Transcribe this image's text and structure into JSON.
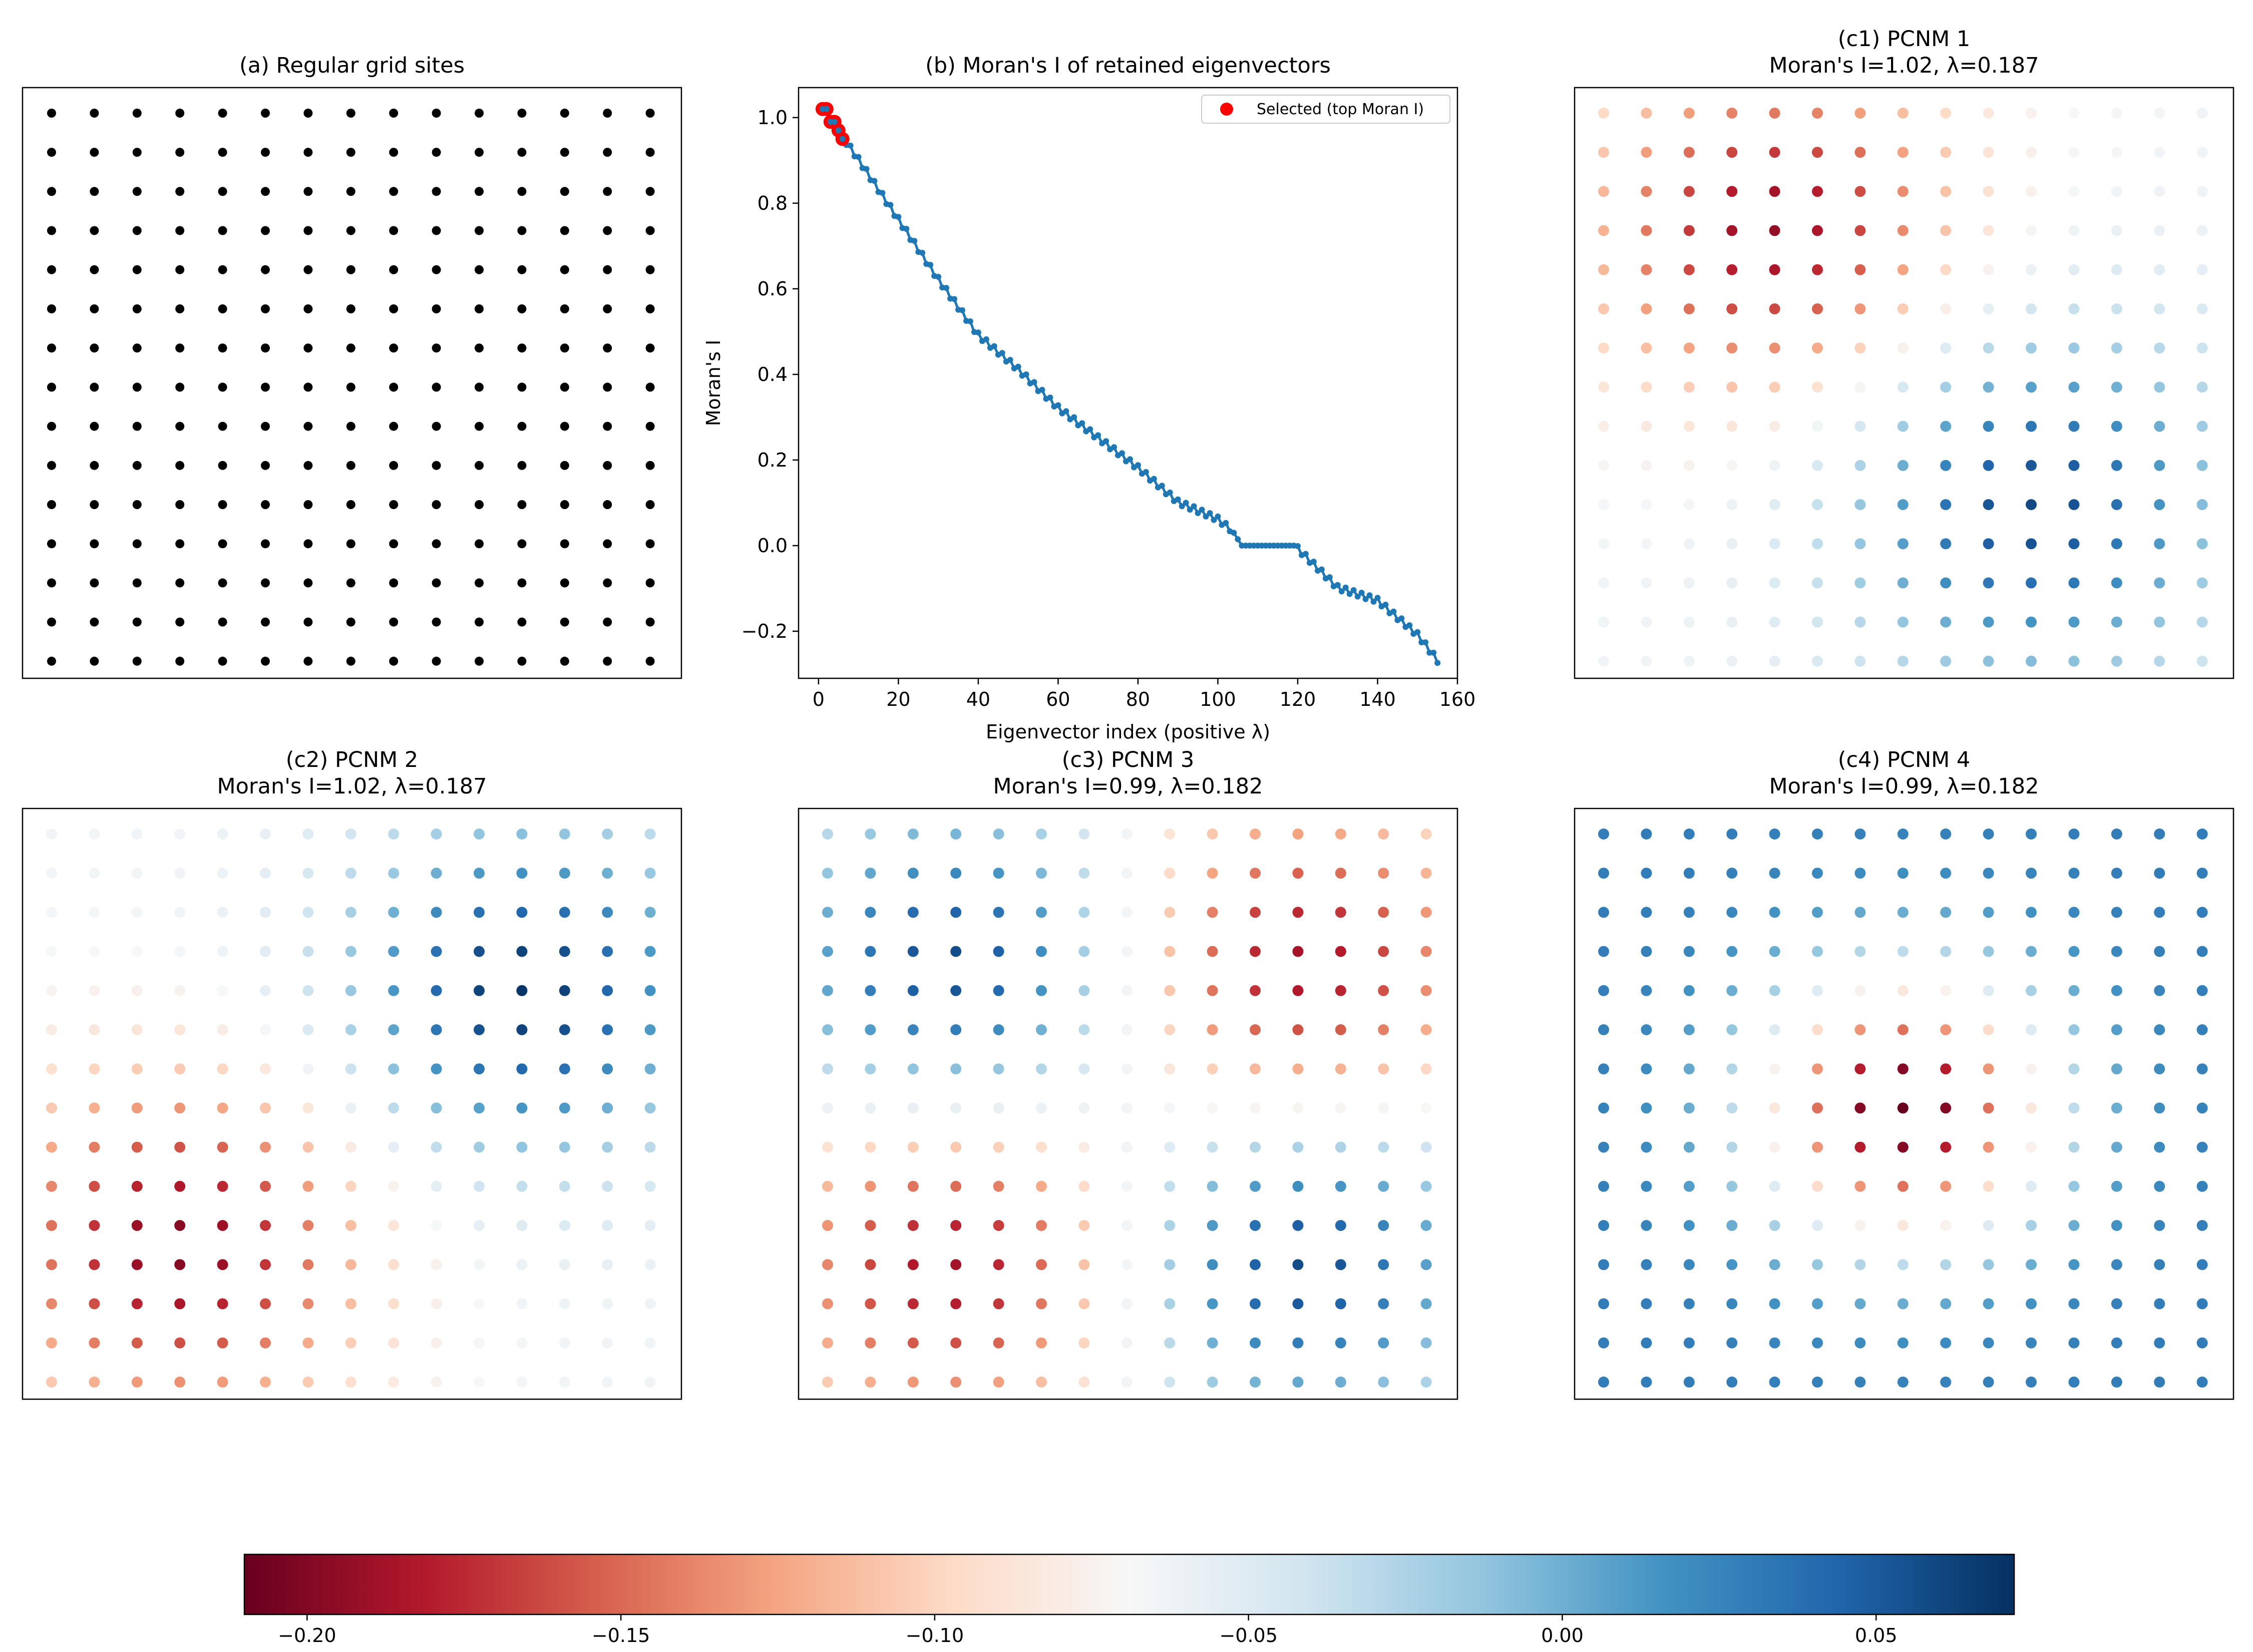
{
  "figure": {
    "panel_a_title": "(a) Regular grid sites",
    "panel_b_title": "(b) Moran's I of retained eigenvectors",
    "panel_c1_title_1": "(c1) PCNM 1",
    "panel_c1_title_2": "Moran's I=1.02, λ=0.187",
    "panel_c2_title_1": "(c2) PCNM 2",
    "panel_c2_title_2": "Moran's I=1.02, λ=0.187",
    "panel_c3_title_1": "(c3) PCNM 3",
    "panel_c3_title_2": "Moran's I=0.99, λ=0.182",
    "panel_c4_title_1": "(c4) PCNM 4",
    "panel_c4_title_2": "Moran's I=0.99, λ=0.182",
    "colormap": "RdBu",
    "grid_point_color": "#000000",
    "series_color": "#1f77b4",
    "selected_color": "#ff0000"
  },
  "chart_data": [
    {
      "type": "scatter",
      "title": "(a) Regular grid sites",
      "grid": {
        "nx": 15,
        "ny": 15,
        "x": [
          1,
          15
        ],
        "y": [
          1,
          15
        ]
      },
      "point_color": "#000000"
    },
    {
      "type": "line",
      "title": "(b) Moran's I of retained eigenvectors",
      "xlabel": "Eigenvector index (positive λ)",
      "ylabel": "Moran's I",
      "xlim": [
        -5,
        160
      ],
      "ylim": [
        -0.31,
        1.07
      ],
      "xticks": [
        0,
        20,
        40,
        60,
        80,
        100,
        120,
        140,
        160
      ],
      "yticks": [
        -0.2,
        0.0,
        0.2,
        0.4,
        0.6,
        0.8,
        1.0
      ],
      "xtick_labels": [
        "0",
        "20",
        "40",
        "60",
        "80",
        "100",
        "120",
        "140",
        "160"
      ],
      "ytick_labels": [
        "−0.2",
        "0.0",
        "0.2",
        "0.4",
        "0.6",
        "0.8",
        "1.0"
      ],
      "series": [
        {
          "x": [
            1,
            10,
            20,
            30,
            40,
            50,
            60,
            70,
            80,
            90,
            100,
            104,
            106,
            119,
            130,
            140,
            150,
            155
          ],
          "y": [
            1.02,
            0.9,
            0.76,
            0.62,
            0.49,
            0.41,
            0.32,
            0.25,
            0.18,
            0.1,
            0.06,
            0.03,
            0.0,
            0.0,
            -0.1,
            -0.13,
            -0.21,
            -0.27
          ],
          "color": "#1f77b4"
        },
        {
          "name": "Selected (top Moran I)",
          "x": [
            1,
            2,
            3,
            4,
            5,
            6
          ],
          "y": [
            1.02,
            1.02,
            0.99,
            0.99,
            0.97,
            0.95
          ],
          "color": "#ff0000"
        }
      ],
      "legend": {
        "entries": [
          "Selected (top Moran I)"
        ],
        "position": "top-right"
      }
    },
    {
      "type": "scatter",
      "title": "(c1) PCNM 1",
      "subtitle": "Moran's I=1.02, λ=0.187",
      "pattern": {
        "mean": -0.065,
        "terms": [
          {
            "a": -0.13,
            "cx": 5,
            "cy": 4,
            "s": 3.0
          },
          {
            "a": 0.125,
            "cx": 11,
            "cy": 11,
            "s": 3.2
          }
        ]
      }
    },
    {
      "type": "scatter",
      "title": "(c2) PCNM 2",
      "subtitle": "Moran's I=1.02, λ=0.187",
      "pattern": {
        "mean": -0.065,
        "terms": [
          {
            "a": -0.135,
            "cx": 4,
            "cy": 11.5,
            "s": 3.0
          },
          {
            "a": 0.135,
            "cx": 12,
            "cy": 5,
            "s": 3.0
          }
        ]
      }
    },
    {
      "type": "scatter",
      "title": "(c3) PCNM 3",
      "subtitle": "Moran's I=0.99, λ=0.182",
      "pattern": {
        "mean": -0.065,
        "terms": [
          {
            "a": 0.13,
            "cx": 4,
            "cy": 4.5,
            "s": 2.9
          },
          {
            "a": -0.13,
            "cx": 12,
            "cy": 4.5,
            "s": 2.9
          },
          {
            "a": -0.13,
            "cx": 4,
            "cy": 11.8,
            "s": 2.9
          },
          {
            "a": 0.13,
            "cx": 12,
            "cy": 11.8,
            "s": 2.9
          }
        ]
      }
    },
    {
      "type": "scatter",
      "title": "(c4) PCNM 4",
      "subtitle": "Moran's I=0.99, λ=0.182",
      "pattern": {
        "mean": 0.03,
        "terms": [
          {
            "a": -0.25,
            "cx": 8,
            "cy": 8,
            "s": 2.4
          }
        ]
      }
    },
    {
      "type": "colorbar",
      "range": [
        -0.21,
        0.072
      ],
      "ticks": [
        -0.2,
        -0.15,
        -0.1,
        -0.05,
        0.0,
        0.05
      ],
      "tick_labels": [
        "−0.20",
        "−0.15",
        "−0.10",
        "−0.05",
        "0.00",
        "0.05"
      ],
      "colormap": "RdBu"
    }
  ]
}
